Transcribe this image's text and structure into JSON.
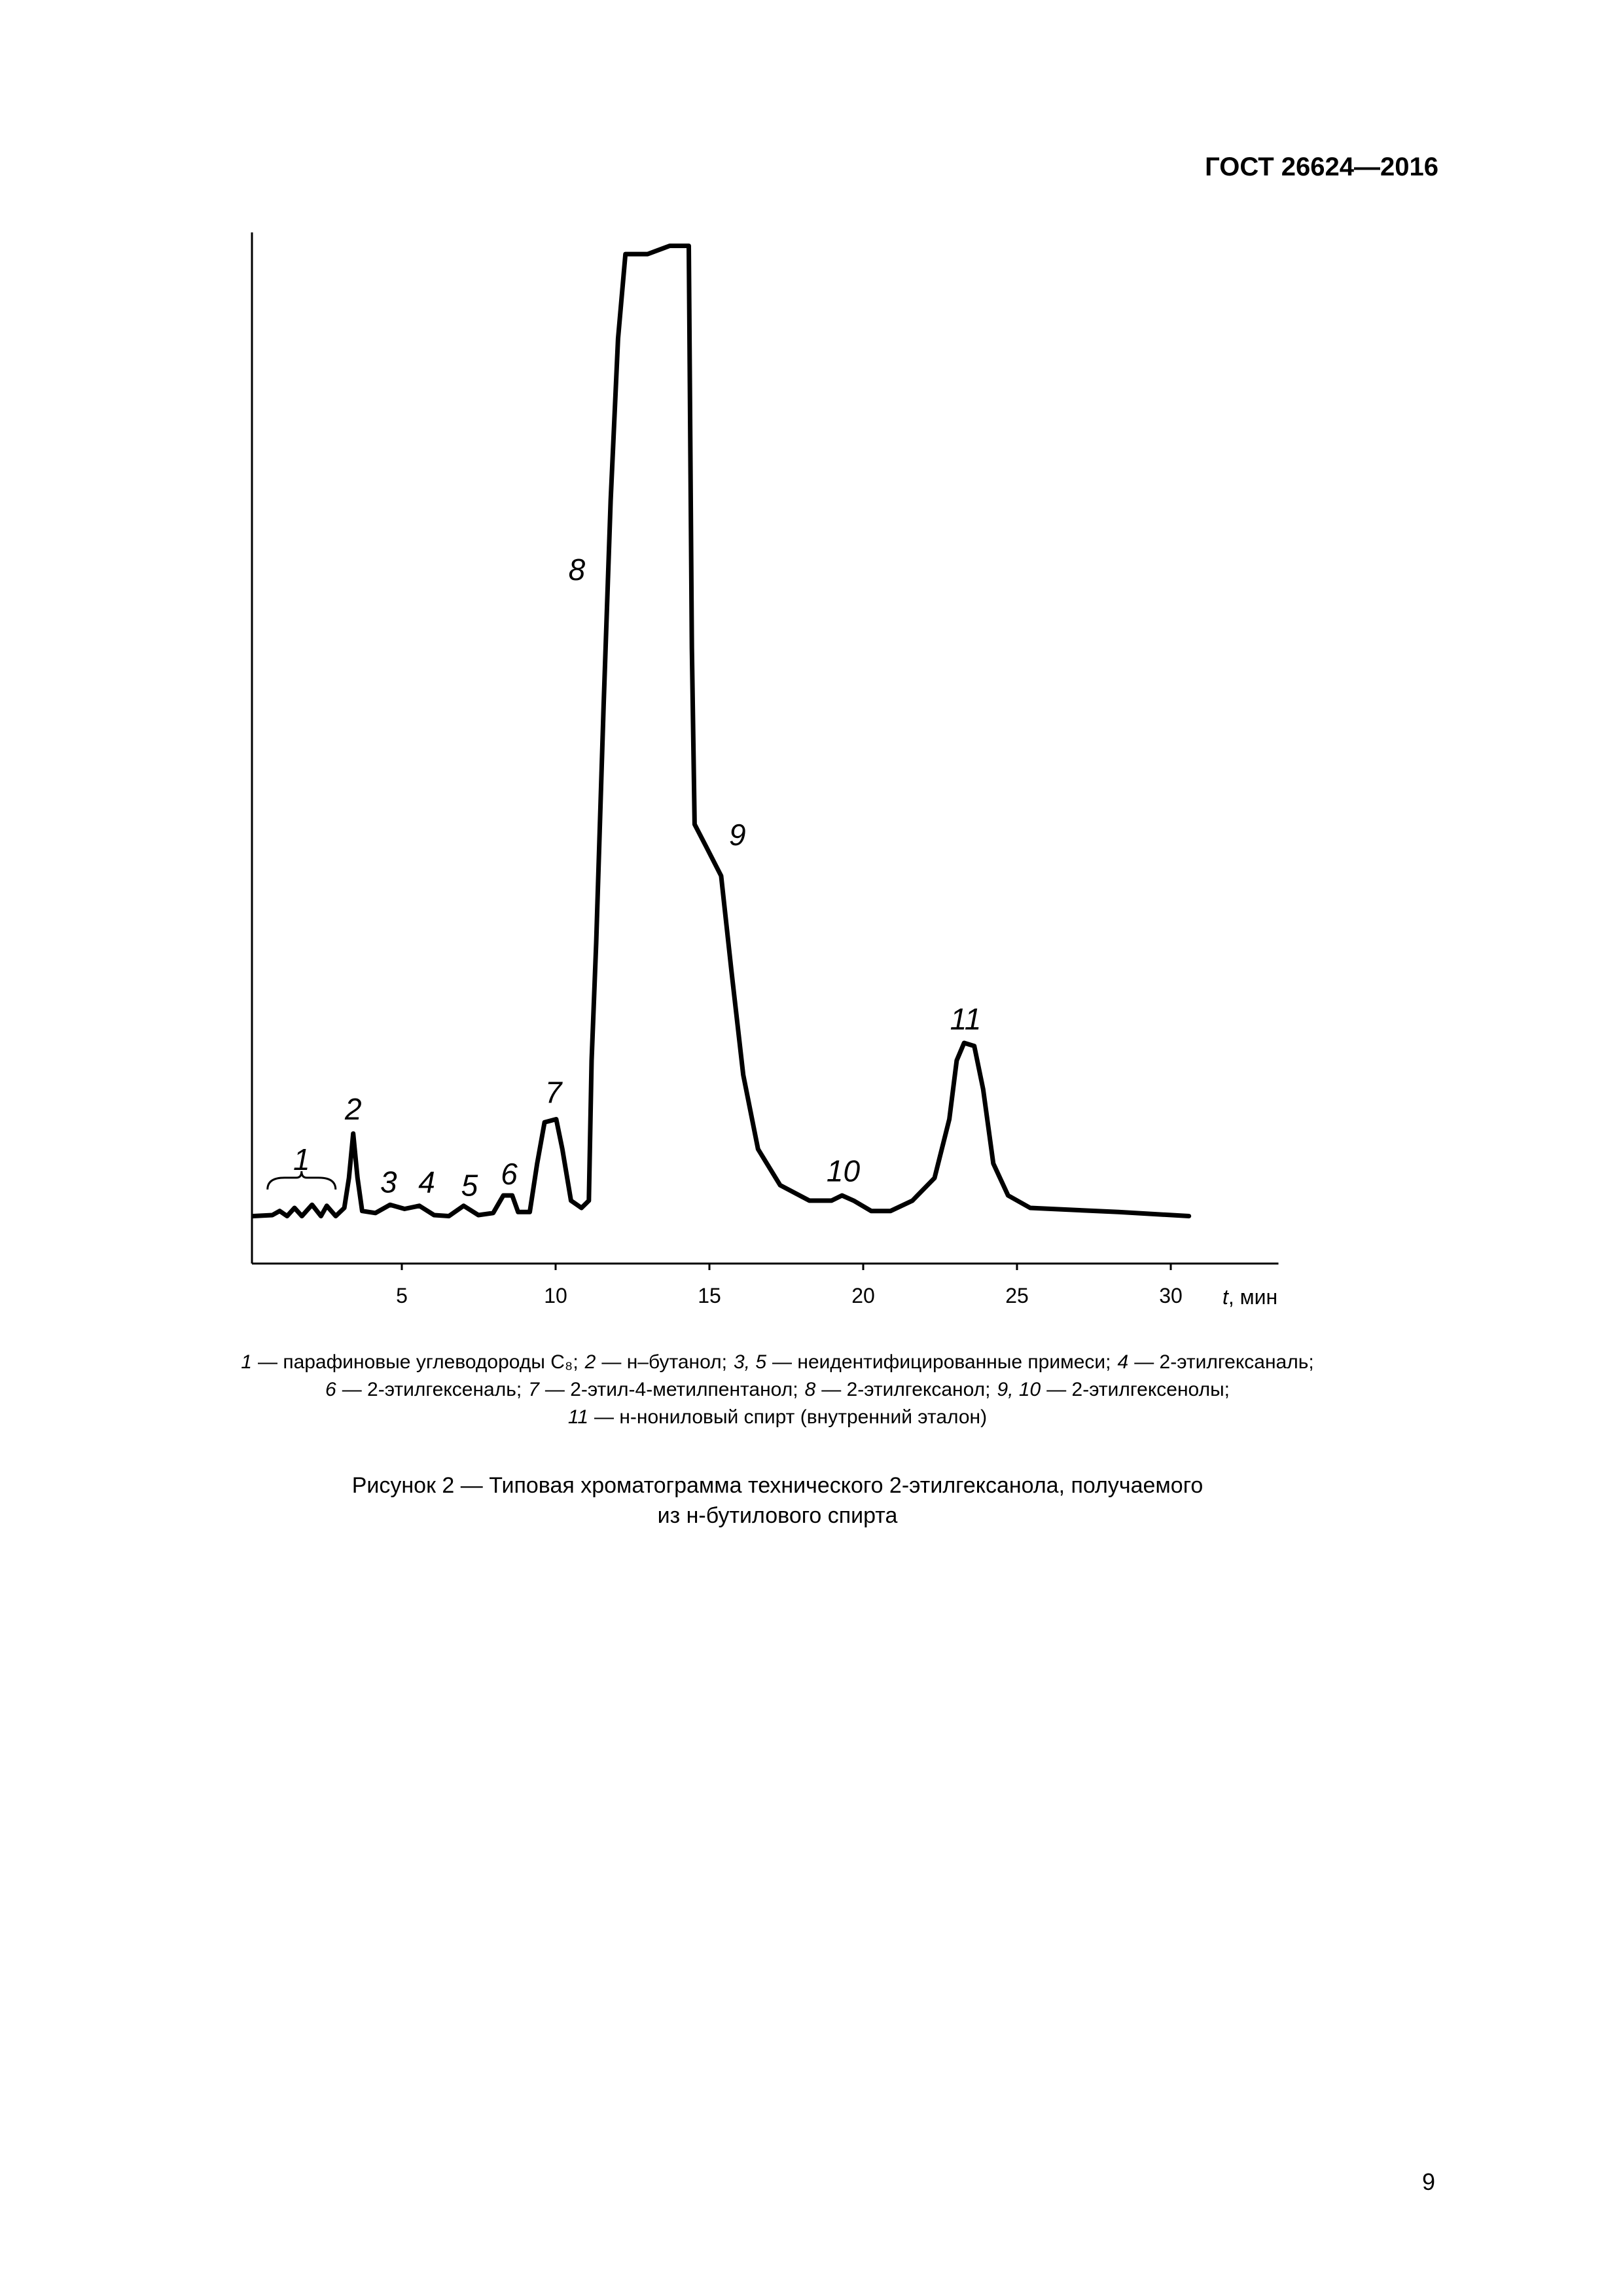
{
  "header": {
    "title": "ГОСТ 26624—2016"
  },
  "chart_data": {
    "type": "line",
    "x": [
      0.17,
      0.79,
      1.03,
      1.27,
      1.51,
      1.75,
      2.08,
      2.37,
      2.56,
      2.85,
      3.13,
      3.28,
      3.42,
      3.56,
      3.71,
      4.14,
      4.62,
      5.09,
      5.57,
      6.05,
      6.53,
      7.01,
      7.49,
      7.97,
      8.3,
      8.59,
      8.78,
      9.16,
      9.4,
      9.64,
      10.02,
      10.22,
      10.5,
      10.84,
      11.08,
      11.17,
      11.32,
      11.56,
      11.79,
      12.03,
      12.27,
      12.99,
      13.71,
      14.33,
      14.43,
      14.52,
      14.9,
      15.38,
      15.72,
      16.1,
      16.58,
      17.3,
      18.25,
      18.97,
      19.31,
      19.69,
      20.26,
      20.89,
      21.6,
      22.32,
      22.8,
      23.04,
      23.28,
      23.61,
      23.9,
      24.23,
      24.71,
      25.43,
      28.3,
      30.59
    ],
    "values": [
      4.6,
      4.7,
      5.1,
      4.6,
      5.4,
      4.6,
      5.7,
      4.6,
      5.6,
      4.6,
      5.4,
      8.3,
      12.6,
      8.3,
      5.1,
      4.9,
      5.7,
      5.3,
      5.6,
      4.7,
      4.6,
      5.6,
      4.7,
      4.9,
      6.6,
      6.6,
      5.0,
      5.0,
      9.7,
      13.7,
      14.0,
      11.1,
      6.1,
      5.4,
      6.1,
      19.7,
      31.1,
      54.0,
      74.0,
      89.7,
      97.9,
      97.9,
      98.7,
      98.7,
      59.7,
      42.6,
      40.4,
      37.6,
      28.3,
      18.3,
      11.1,
      7.6,
      6.1,
      6.1,
      6.6,
      6.1,
      5.1,
      5.1,
      6.1,
      8.3,
      14.0,
      19.7,
      21.4,
      21.1,
      16.9,
      9.7,
      6.6,
      5.4,
      5.0,
      4.6
    ],
    "color": "#000000",
    "xlim": [
      0,
      33.5
    ],
    "ylim": [
      0,
      100
    ],
    "xticks": [
      5,
      10,
      15,
      20,
      25,
      30
    ],
    "x_label_var": "t",
    "x_label_unit": ", мин",
    "annotations": [
      {
        "text": "1",
        "x": 1.74,
        "y": 10.1
      },
      {
        "text": "2",
        "x": 3.42,
        "y": 15.0
      },
      {
        "text": "3",
        "x": 4.57,
        "y": 7.9
      },
      {
        "text": "4",
        "x": 5.81,
        "y": 7.9
      },
      {
        "text": "5",
        "x": 7.2,
        "y": 7.6
      },
      {
        "text": "6",
        "x": 8.49,
        "y": 8.7
      },
      {
        "text": "7",
        "x": 9.93,
        "y": 16.6
      },
      {
        "text": "8",
        "x": 10.69,
        "y": 67.3
      },
      {
        "text": "9",
        "x": 15.91,
        "y": 41.6
      },
      {
        "text": "10",
        "x": 19.35,
        "y": 9.0
      },
      {
        "text": "11",
        "x": 23.33,
        "y": 23.7
      }
    ]
  },
  "legend": {
    "lines": [
      [
        {
          "key": "1",
          "text": "— парафиновые углеводороды C₈;"
        },
        {
          "key": "2",
          "text": "— н–бутанол;"
        },
        {
          "key": "3, 5",
          "text": "— неидентифицированные примеси;"
        },
        {
          "key": "4",
          "text": "— 2-этилгексаналь;"
        }
      ],
      [
        {
          "key": "6",
          "text": "— 2-этилгексеналь;"
        },
        {
          "key": "7",
          "text": "— 2-этил-4-метилпентанол;"
        },
        {
          "key": "8",
          "text": "— 2-этилгексанол;"
        },
        {
          "key": "9, 10",
          "text": "— 2-этилгексенолы;"
        }
      ],
      [
        {
          "key": "11",
          "text": "— н-нониловый спирт (внутренний эталон)"
        }
      ]
    ]
  },
  "caption": {
    "lines": [
      "Рисунок 2 — Типовая хроматограмма технического 2-этилгексанола, получаемого",
      "из н-бутилового спирта"
    ]
  },
  "page_number": "9"
}
